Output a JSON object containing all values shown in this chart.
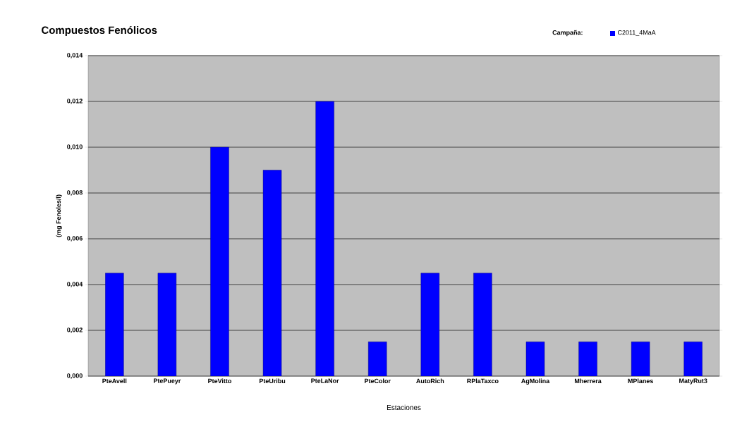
{
  "chart_data": {
    "type": "bar",
    "title": "Compuestos Fenólicos",
    "xlabel": "Estaciones",
    "ylabel": "(mg Fenoles/l)",
    "legend_title": "Campaña:",
    "categories": [
      "PteAvell",
      "PtePueyr",
      "PteVitto",
      "PteUribu",
      "PteLaNor",
      "PteColor",
      "AutoRich",
      "RPlaTaxco",
      "AgMolina",
      "Mherrera",
      "MPlanes",
      "MatyRut3"
    ],
    "series": [
      {
        "name": "C2011_4MaA",
        "color": "#0000ff",
        "values": [
          0.0045,
          0.0045,
          0.01,
          0.009,
          0.012,
          0.0015,
          0.0045,
          0.0045,
          0.0015,
          0.0015,
          0.0015,
          0.0015
        ]
      }
    ],
    "ylim": [
      0,
      0.014
    ],
    "yticks": [
      {
        "value": 0,
        "label": "0,000"
      },
      {
        "value": 0.002,
        "label": "0,002"
      },
      {
        "value": 0.004,
        "label": "0,004"
      },
      {
        "value": 0.006,
        "label": "0,006"
      },
      {
        "value": 0.008,
        "label": "0,008"
      },
      {
        "value": 0.01,
        "label": "0,010"
      },
      {
        "value": 0.012,
        "label": "0,012"
      },
      {
        "value": 0.014,
        "label": "0,014"
      }
    ],
    "grid": "y",
    "legend": "top right"
  }
}
